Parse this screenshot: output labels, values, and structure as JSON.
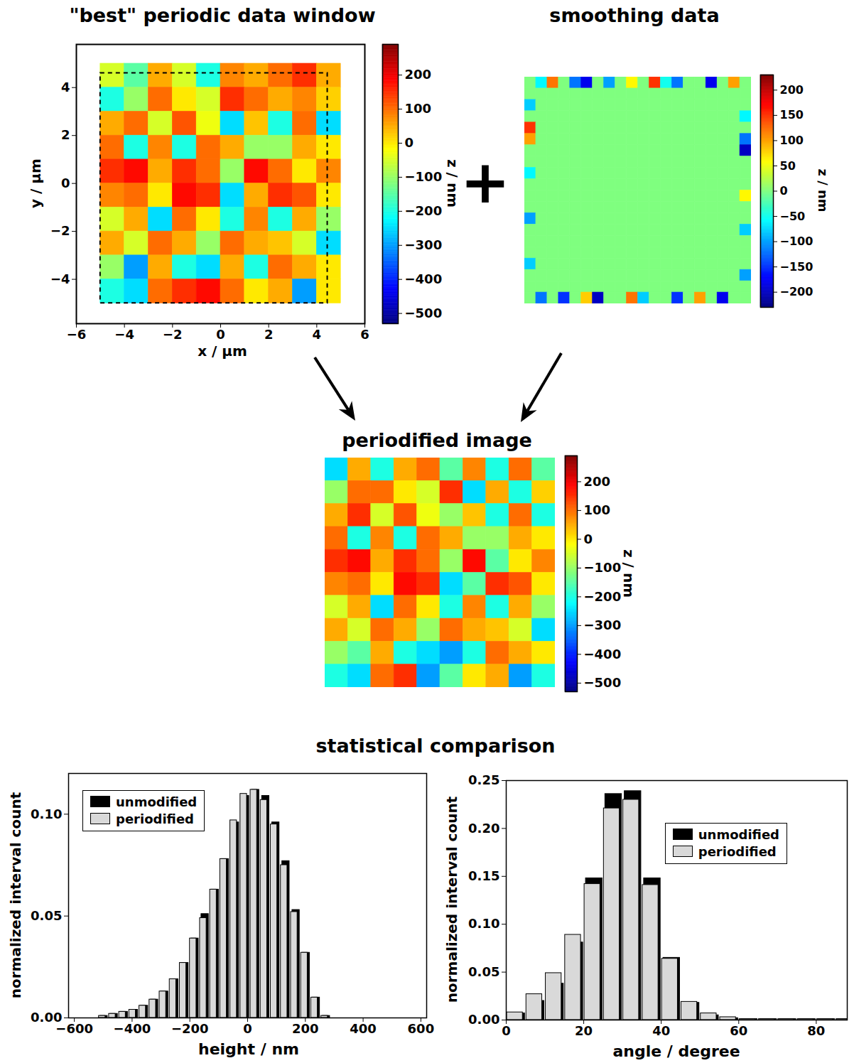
{
  "figure_texts": {
    "operator": "+",
    "section_title": "statistical comparison"
  },
  "chart_data": [
    {
      "type": "heatmap",
      "title": "\"best\" periodic data window",
      "x_label": "x / µm",
      "y_label": "y / µm",
      "xlim": [
        -6,
        6
      ],
      "xticks": [
        -6,
        -4,
        -2,
        0,
        2,
        4,
        6
      ],
      "ylim": [
        -5.85,
        5.8
      ],
      "yticks": [
        -4,
        -2,
        0,
        2,
        4
      ],
      "extent": {
        "x": [
          -5,
          5
        ],
        "y": [
          -5,
          5
        ]
      },
      "window": {
        "x": [
          -5,
          4.45
        ],
        "y": [
          -5,
          4.6
        ]
      },
      "z": [
        [
          -50,
          -150,
          50,
          -50,
          -200,
          80,
          50,
          100,
          150,
          50
        ],
        [
          -200,
          -100,
          100,
          0,
          -50,
          150,
          100,
          50,
          80,
          20
        ],
        [
          50,
          100,
          -50,
          120,
          -30,
          -250,
          30,
          -200,
          100,
          -250
        ],
        [
          100,
          -200,
          80,
          -200,
          100,
          50,
          -100,
          -100,
          50,
          0
        ],
        [
          150,
          180,
          50,
          150,
          100,
          -100,
          180,
          100,
          0,
          80
        ],
        [
          80,
          100,
          0,
          180,
          150,
          -250,
          50,
          150,
          120,
          0
        ],
        [
          -50,
          50,
          -250,
          100,
          0,
          -200,
          80,
          -200,
          50,
          -100
        ],
        [
          50,
          -50,
          100,
          50,
          -100,
          100,
          50,
          30,
          -50,
          -250
        ],
        [
          -100,
          -300,
          50,
          -200,
          -250,
          50,
          -200,
          100,
          50,
          0
        ],
        [
          -200,
          -250,
          100,
          150,
          180,
          100,
          0,
          50,
          -300,
          0
        ]
      ],
      "colorbar": {
        "range": [
          -530,
          290
        ],
        "ticks": [
          -500,
          -400,
          -300,
          -200,
          -100,
          0,
          100,
          200
        ],
        "label": "z / nm"
      }
    },
    {
      "type": "heatmap",
      "title": "smoothing data",
      "tick_labels": false,
      "extent": {
        "x": [
          -5,
          4.45
        ],
        "y": [
          -5,
          4.6
        ]
      },
      "z": [
        [
          0,
          -60,
          120,
          0,
          -120,
          -180,
          0,
          -100,
          0,
          60,
          0,
          150,
          -50,
          -120,
          0,
          0,
          -180,
          0,
          100,
          0
        ],
        [
          0,
          0,
          0,
          0,
          0,
          0,
          0,
          0,
          0,
          0,
          0,
          0,
          0,
          0,
          0,
          0,
          0,
          0,
          0,
          0
        ],
        [
          -80,
          0,
          0,
          0,
          0,
          0,
          0,
          0,
          0,
          0,
          0,
          0,
          0,
          0,
          0,
          0,
          0,
          0,
          0,
          0
        ],
        [
          0,
          0,
          0,
          0,
          0,
          0,
          0,
          0,
          0,
          0,
          0,
          0,
          0,
          0,
          0,
          0,
          0,
          0,
          0,
          -60
        ],
        [
          150,
          0,
          0,
          0,
          0,
          0,
          0,
          0,
          0,
          0,
          0,
          0,
          0,
          0,
          0,
          0,
          0,
          0,
          0,
          0
        ],
        [
          100,
          0,
          0,
          0,
          0,
          0,
          0,
          0,
          0,
          0,
          0,
          0,
          0,
          0,
          0,
          0,
          0,
          0,
          0,
          -120
        ],
        [
          0,
          0,
          0,
          0,
          0,
          0,
          0,
          0,
          0,
          0,
          0,
          0,
          0,
          0,
          0,
          0,
          0,
          0,
          0,
          -200
        ],
        [
          0,
          0,
          0,
          0,
          0,
          0,
          0,
          0,
          0,
          0,
          0,
          0,
          0,
          0,
          0,
          0,
          0,
          0,
          0,
          0
        ],
        [
          -60,
          0,
          0,
          0,
          0,
          0,
          0,
          0,
          0,
          0,
          0,
          0,
          0,
          0,
          0,
          0,
          0,
          0,
          0,
          0
        ],
        [
          0,
          0,
          0,
          0,
          0,
          0,
          0,
          0,
          0,
          0,
          0,
          0,
          0,
          0,
          0,
          0,
          0,
          0,
          0,
          0
        ],
        [
          0,
          0,
          0,
          0,
          0,
          0,
          0,
          0,
          0,
          0,
          0,
          0,
          0,
          0,
          0,
          0,
          0,
          0,
          0,
          60
        ],
        [
          0,
          0,
          0,
          0,
          0,
          0,
          0,
          0,
          0,
          0,
          0,
          0,
          0,
          0,
          0,
          0,
          0,
          0,
          0,
          0
        ],
        [
          -100,
          0,
          0,
          0,
          0,
          0,
          0,
          0,
          0,
          0,
          0,
          0,
          0,
          0,
          0,
          0,
          0,
          0,
          0,
          0
        ],
        [
          0,
          0,
          0,
          0,
          0,
          0,
          0,
          0,
          0,
          0,
          0,
          0,
          0,
          0,
          0,
          0,
          0,
          0,
          0,
          -80
        ],
        [
          0,
          0,
          0,
          0,
          0,
          0,
          0,
          0,
          0,
          0,
          0,
          0,
          0,
          0,
          0,
          0,
          0,
          0,
          0,
          0
        ],
        [
          0,
          0,
          0,
          0,
          0,
          0,
          0,
          0,
          0,
          0,
          0,
          0,
          0,
          0,
          0,
          0,
          0,
          0,
          0,
          0
        ],
        [
          -80,
          0,
          0,
          0,
          0,
          0,
          0,
          0,
          0,
          0,
          0,
          0,
          0,
          0,
          0,
          0,
          0,
          0,
          0,
          0
        ],
        [
          0,
          0,
          0,
          0,
          0,
          0,
          0,
          0,
          0,
          0,
          0,
          0,
          0,
          0,
          0,
          0,
          0,
          0,
          0,
          -100
        ],
        [
          0,
          0,
          0,
          0,
          0,
          0,
          0,
          0,
          0,
          0,
          0,
          0,
          0,
          0,
          0,
          0,
          0,
          0,
          0,
          0
        ],
        [
          0,
          -120,
          0,
          -150,
          0,
          80,
          -200,
          0,
          0,
          120,
          -80,
          0,
          0,
          -150,
          0,
          100,
          0,
          -180,
          0,
          0
        ]
      ],
      "colorbar": {
        "range": [
          -230,
          230
        ],
        "ticks": [
          -200,
          -150,
          -100,
          -50,
          0,
          50,
          100,
          150,
          200
        ],
        "label": "z / nm"
      }
    },
    {
      "type": "heatmap",
      "title": "periodified image",
      "tick_labels": false,
      "extent": {
        "x": [
          -5,
          4.45
        ],
        "y": [
          -5,
          4.6
        ]
      },
      "z": [
        [
          -250,
          50,
          -200,
          50,
          100,
          -150,
          80,
          -200,
          100,
          -150
        ],
        [
          -100,
          100,
          100,
          0,
          -50,
          150,
          -250,
          50,
          -200,
          20
        ],
        [
          50,
          150,
          -50,
          120,
          -30,
          -100,
          30,
          -200,
          100,
          -200
        ],
        [
          100,
          -200,
          80,
          -200,
          100,
          50,
          -100,
          -100,
          50,
          0
        ],
        [
          150,
          180,
          50,
          150,
          100,
          -100,
          180,
          -150,
          0,
          80
        ],
        [
          80,
          100,
          0,
          180,
          150,
          -250,
          -150,
          150,
          120,
          0
        ],
        [
          -50,
          50,
          -250,
          100,
          0,
          -200,
          80,
          -200,
          50,
          -100
        ],
        [
          50,
          -50,
          100,
          50,
          -100,
          100,
          50,
          30,
          -50,
          -250
        ],
        [
          -100,
          -150,
          50,
          -200,
          -250,
          -300,
          -200,
          100,
          50,
          0
        ],
        [
          -200,
          -250,
          100,
          150,
          -300,
          -150,
          0,
          50,
          -300,
          -200
        ]
      ],
      "colorbar": {
        "range": [
          -530,
          290
        ],
        "ticks": [
          -500,
          -400,
          -300,
          -200,
          -100,
          0,
          100,
          200
        ],
        "label": "z / nm"
      }
    },
    {
      "type": "histogram",
      "x_label": "height / nm",
      "y_label": "normalized interval count",
      "bins": [
        -517.5,
        -482.5,
        -447.5,
        -412.5,
        -377.5,
        -342.5,
        -307.5,
        -272.5,
        -237.5,
        -202.5,
        -167.5,
        -132.5,
        -97.5,
        -62.5,
        -27.5,
        7.5,
        42.5,
        77.5,
        112.5,
        147.5,
        182.5,
        217.5,
        252.5,
        287.5
      ],
      "series": [
        {
          "name": "unmodified",
          "color": "#000000",
          "values": [
            0.001,
            0.002,
            0.003,
            0.004,
            0.006,
            0.009,
            0.013,
            0.019,
            0.027,
            0.039,
            0.051,
            0.063,
            0.078,
            0.096,
            0.109,
            0.112,
            0.109,
            0.096,
            0.077,
            0.053,
            0.032,
            0.01,
            0.001
          ]
        },
        {
          "name": "periodified",
          "color": "#d9d9d9",
          "values": [
            0.001,
            0.002,
            0.003,
            0.004,
            0.006,
            0.009,
            0.013,
            0.019,
            0.027,
            0.039,
            0.049,
            0.063,
            0.078,
            0.097,
            0.11,
            0.112,
            0.107,
            0.095,
            0.075,
            0.052,
            0.032,
            0.01,
            0.001
          ]
        }
      ],
      "xlim": [
        -620,
        620
      ],
      "xticks": [
        -600,
        -400,
        -200,
        0,
        200,
        400,
        600
      ],
      "ylim": [
        0,
        0.12
      ],
      "yticks": [
        {
          "value": 0,
          "label": "0.00"
        },
        {
          "value": 0.05,
          "label": "0.05"
        },
        {
          "value": 0.1,
          "label": "0.10"
        }
      ],
      "legend": "top-left"
    },
    {
      "type": "histogram",
      "x_label": "angle / degree",
      "y_label": "normalized interval count",
      "bins": [
        0,
        5,
        10,
        15,
        20,
        25,
        30,
        35,
        40,
        45,
        50,
        55,
        60,
        65,
        70,
        75,
        80,
        85,
        90
      ],
      "series": [
        {
          "name": "unmodified",
          "color": "#000000",
          "values": [
            0.007,
            0.02,
            0.038,
            0.081,
            0.148,
            0.236,
            0.239,
            0.148,
            0.065,
            0.018,
            0.005,
            0.002,
            0.001,
            0.001,
            0.001,
            0.001,
            0.001,
            0.001
          ]
        },
        {
          "name": "periodified",
          "color": "#d9d9d9",
          "values": [
            0.008,
            0.027,
            0.049,
            0.089,
            0.142,
            0.221,
            0.23,
            0.141,
            0.064,
            0.019,
            0.007,
            0.003,
            0.001,
            0.001,
            0.001,
            0.001,
            0.001,
            0.001
          ]
        }
      ],
      "xlim": [
        0,
        88
      ],
      "xticks": [
        0,
        20,
        40,
        60,
        80
      ],
      "ylim": [
        0,
        0.25
      ],
      "yticks": [
        {
          "value": 0,
          "label": "0.00"
        },
        {
          "value": 0.05,
          "label": "0.05"
        },
        {
          "value": 0.1,
          "label": "0.10"
        },
        {
          "value": 0.15,
          "label": "0.15"
        },
        {
          "value": 0.2,
          "label": "0.20"
        },
        {
          "value": 0.25,
          "label": "0.25"
        }
      ],
      "legend": "top-right"
    }
  ]
}
